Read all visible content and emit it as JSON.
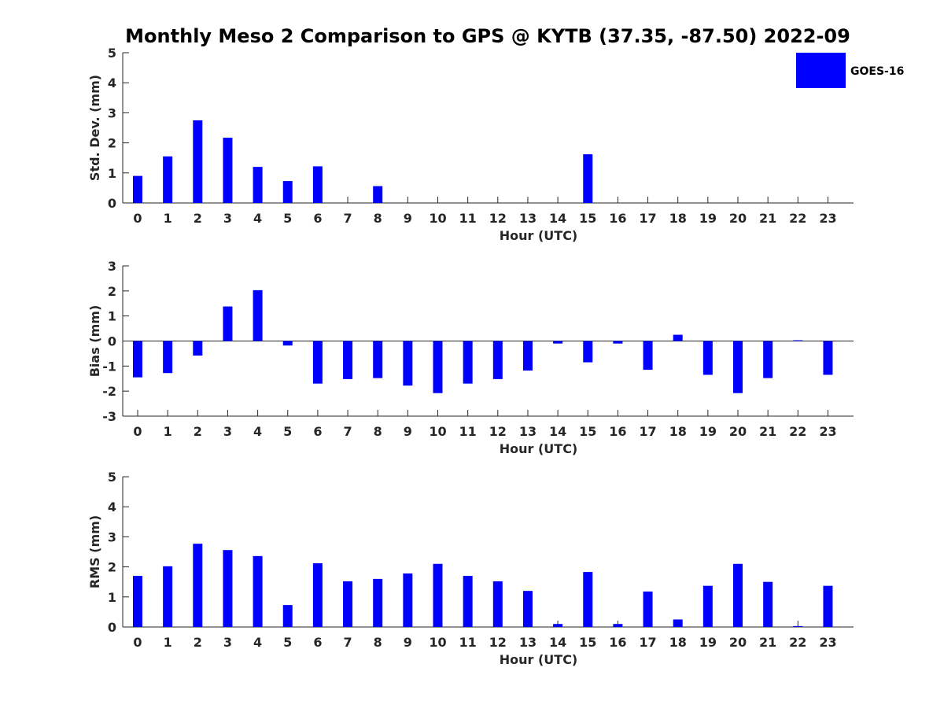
{
  "title": "Monthly Meso 2 Comparison to GPS @ KYTB (37.35, -87.50) 2022-09",
  "legend": {
    "label": "GOES-16",
    "color": "#0000ff",
    "placement": "top-right"
  },
  "colors": {
    "bar": "#0000ff",
    "axis": "#262626"
  },
  "chart_data": [
    {
      "type": "bar",
      "categories": [
        "0",
        "1",
        "2",
        "3",
        "4",
        "5",
        "6",
        "7",
        "8",
        "9",
        "10",
        "11",
        "12",
        "13",
        "14",
        "15",
        "16",
        "17",
        "18",
        "19",
        "20",
        "21",
        "22",
        "23"
      ],
      "series": [
        {
          "name": "GOES-16",
          "values": [
            0.9,
            1.55,
            2.75,
            2.17,
            1.2,
            0.73,
            1.22,
            0,
            0.56,
            0,
            0,
            0,
            0,
            0,
            0,
            1.62,
            0,
            0,
            0,
            0,
            0,
            0,
            0,
            0
          ]
        }
      ],
      "title": "",
      "xlabel": "Hour (UTC)",
      "ylabel": "Std. Dev. (mm)",
      "ylim": [
        0,
        5
      ],
      "yticks": [
        "0",
        "1",
        "2",
        "3",
        "4",
        "5"
      ],
      "grid": false
    },
    {
      "type": "bar",
      "categories": [
        "0",
        "1",
        "2",
        "3",
        "4",
        "5",
        "6",
        "7",
        "8",
        "9",
        "10",
        "11",
        "12",
        "13",
        "14",
        "15",
        "16",
        "17",
        "18",
        "19",
        "20",
        "21",
        "22",
        "23"
      ],
      "series": [
        {
          "name": "GOES-16",
          "values": [
            -1.45,
            -1.28,
            -0.58,
            1.38,
            2.03,
            -0.18,
            -1.7,
            -1.52,
            -1.48,
            -1.78,
            -2.08,
            -1.7,
            -1.52,
            -1.18,
            -0.1,
            -0.85,
            -0.1,
            -1.15,
            0.25,
            -1.35,
            -2.08,
            -1.48,
            0.03,
            -1.35
          ]
        }
      ],
      "title": "",
      "xlabel": "Hour (UTC)",
      "ylabel": "Bias (mm)",
      "ylim": [
        -3,
        3
      ],
      "yticks": [
        "-3",
        "-2",
        "-1",
        "0",
        "1",
        "2",
        "3"
      ],
      "grid": false
    },
    {
      "type": "bar",
      "categories": [
        "0",
        "1",
        "2",
        "3",
        "4",
        "5",
        "6",
        "7",
        "8",
        "9",
        "10",
        "11",
        "12",
        "13",
        "14",
        "15",
        "16",
        "17",
        "18",
        "19",
        "20",
        "21",
        "22",
        "23"
      ],
      "series": [
        {
          "name": "GOES-16",
          "values": [
            1.7,
            2.02,
            2.77,
            2.56,
            2.36,
            0.73,
            2.12,
            1.52,
            1.6,
            1.78,
            2.1,
            1.7,
            1.52,
            1.2,
            0.1,
            1.83,
            0.1,
            1.18,
            0.25,
            1.37,
            2.1,
            1.5,
            0.03,
            1.37
          ]
        }
      ],
      "title": "",
      "xlabel": "Hour (UTC)",
      "ylabel": "RMS (mm)",
      "ylim": [
        0,
        5
      ],
      "yticks": [
        "0",
        "1",
        "2",
        "3",
        "4",
        "5"
      ],
      "grid": false
    }
  ]
}
